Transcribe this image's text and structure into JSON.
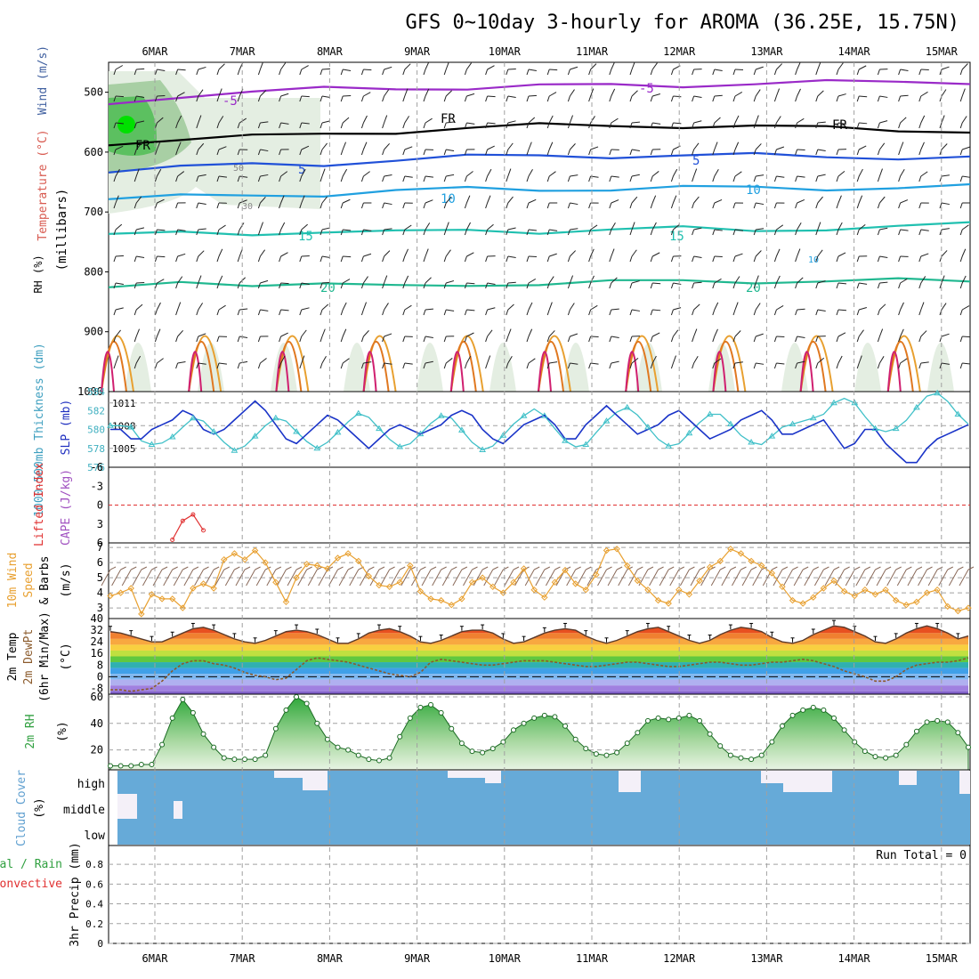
{
  "title": "GFS 0~10day 3-hourly for AROMA (36.25E, 15.75N)",
  "dates": [
    "6MAR",
    "7MAR",
    "8MAR",
    "9MAR",
    "10MAR",
    "11MAR",
    "12MAR",
    "13MAR",
    "14MAR",
    "15MAR"
  ],
  "colors": {
    "frame": "#000000",
    "grid": "#a0a0a0",
    "rh_green": "#3cb44a",
    "slp": "#40c0c8",
    "thickness": "#1a34c8",
    "li": "#e03030",
    "wind": "#e8a030",
    "cloud": "#66aad8",
    "dewpt": "#8b5a2b",
    "temp_curve": "#5a3a2a"
  },
  "chart_data": [
    {
      "type": "line",
      "panel": "upper-air",
      "ylabels": [
        "Wind (m/s)",
        "Temperature (°C)",
        "RH (%)",
        "(millibars)"
      ],
      "y_ticks": [
        "500",
        "600",
        "700",
        "800",
        "900"
      ],
      "y_bottom_label": "1000",
      "ylim": [
        1000,
        450
      ],
      "isotherms": [
        {
          "name": "-5",
          "color": "#9a2ac8",
          "p": [
            520,
            505,
            500,
            495,
            493,
            492,
            490,
            489,
            488,
            485,
            484,
            483,
            482
          ]
        },
        {
          "name": "FR",
          "color": "#000000",
          "p": [
            585,
            578,
            575,
            570,
            565,
            560,
            556,
            555,
            556,
            558,
            560,
            562,
            565
          ]
        },
        {
          "name": "5",
          "color": "#2050d8",
          "p": [
            630,
            625,
            622,
            620,
            612,
            608,
            607,
            606,
            605,
            606,
            608,
            608,
            609
          ]
        },
        {
          "name": "10",
          "color": "#20a0e0",
          "p": [
            678,
            675,
            672,
            670,
            665,
            662,
            662,
            661,
            660,
            660,
            660,
            659,
            658
          ]
        },
        {
          "name": "15",
          "color": "#20c0b0",
          "p": [
            740,
            735,
            735,
            733,
            735,
            730,
            732,
            730,
            728,
            730,
            727,
            726,
            720
          ]
        },
        {
          "name": "20",
          "color": "#20b890",
          "p": [
            830,
            815,
            820,
            822,
            825,
            820,
            820,
            818,
            815,
            815,
            816,
            815,
            815
          ]
        }
      ],
      "contour_labels": [
        "-5",
        "-5",
        "FR",
        "FR",
        "FR",
        "5",
        "5",
        "10",
        "10",
        "15",
        "15",
        "20",
        "20",
        "50",
        "30",
        "10"
      ]
    },
    {
      "type": "line",
      "panel": "pressure",
      "ylabels": [
        "1000-500mb Thickness (dm)",
        "SLP (mb)"
      ],
      "left_ticks": [
        "584",
        "582",
        "580",
        "578",
        "576"
      ],
      "right_ticks": [
        "1011",
        "1008",
        "1005"
      ],
      "series": [
        {
          "name": "SLP (mb)",
          "axis": "right",
          "values": [
            1008,
            1008,
            1007.8,
            1006,
            1005.5,
            1005.7,
            1006.5,
            1007.8,
            1009,
            1008.6,
            1007.2,
            1005.8,
            1004.7,
            1005.3,
            1006.6,
            1008,
            1009,
            1008.6,
            1007.2,
            1005.9,
            1005,
            1005.8,
            1007.1,
            1008.5,
            1009.6,
            1009.1,
            1007.6,
            1006.2,
            1005.2,
            1005.6,
            1006.9,
            1008.3,
            1009.3,
            1009,
            1007.4,
            1005.8,
            1004.8,
            1005.3,
            1006.7,
            1008.2,
            1009.3,
            1010.2,
            1009.3,
            1007.6,
            1006,
            1005.2,
            1005.5,
            1007.1,
            1008.6,
            1009.8,
            1010.4,
            1009.4,
            1007.8,
            1006.2,
            1005.3,
            1005.6,
            1007,
            1008.4,
            1009.5,
            1009.5,
            1008.2,
            1006.7,
            1005.8,
            1005.5,
            1006.6,
            1007.8,
            1008.2,
            1008.6,
            1009,
            1009.5,
            1011,
            1011.6,
            1011,
            1009.2,
            1007.6,
            1007.2,
            1007.6,
            1008.7,
            1010.4,
            1011.9,
            1012.3,
            1011.2,
            1009.5,
            1008.2
          ]
        },
        {
          "name": "1000-500mb Thickness (dm)",
          "axis": "left",
          "values": [
            580,
            580,
            579,
            579,
            580,
            580.5,
            581,
            582,
            581.5,
            580,
            579.5,
            580,
            581,
            582,
            583,
            582,
            580.5,
            579,
            578.5,
            579.5,
            580.5,
            581.5,
            581,
            580,
            579,
            578,
            579,
            580,
            580.5,
            580,
            579.5,
            580,
            580.5,
            581.5,
            582,
            581.5,
            580,
            579,
            578.5,
            579.5,
            580.5,
            581,
            581.5,
            580.5,
            579,
            579,
            580.5,
            581.5,
            582.5,
            581.5,
            580.5,
            579.5,
            580,
            580.5,
            581.5,
            582,
            581,
            580,
            579,
            579.5,
            580,
            581,
            581.5,
            582,
            581,
            579.5,
            579.5,
            580,
            580.5,
            581,
            579.5,
            578,
            578.5,
            580,
            580,
            578.5,
            577.5,
            576.5,
            576.5,
            578,
            579,
            579.5,
            580,
            580.5
          ]
        }
      ]
    },
    {
      "type": "line",
      "panel": "instability",
      "ylabels": [
        "Lifted Index",
        "CAPE (J/kg)"
      ],
      "y_ticks": [
        "-6",
        "-3",
        "0",
        "3",
        "6"
      ],
      "ylim": [
        -6,
        6
      ],
      "series": [
        {
          "name": "Lifted Index",
          "values": [
            null,
            null,
            null,
            null,
            null,
            null,
            5.5,
            2.5,
            1.5,
            4,
            null,
            null,
            null,
            null,
            null,
            null,
            null,
            null,
            null,
            null,
            null,
            null,
            null,
            null,
            null,
            null,
            null,
            null,
            null,
            null,
            null,
            null,
            null,
            null,
            null,
            null,
            null,
            null,
            null,
            null,
            null,
            null,
            null,
            null,
            null,
            null,
            null,
            null,
            null,
            null,
            null,
            null,
            null,
            null,
            null,
            null,
            null,
            null,
            null,
            null,
            null,
            null,
            null,
            null,
            null,
            null,
            null,
            null,
            null,
            null,
            null,
            null,
            null,
            null,
            null,
            null,
            null,
            null,
            null,
            null,
            null,
            null,
            null,
            null
          ]
        }
      ]
    },
    {
      "type": "line",
      "panel": "wind",
      "ylabels": [
        "10m Wind",
        "Speed",
        "& Barbs",
        "(m/s)"
      ],
      "y_ticks": [
        "7",
        "6",
        "5",
        "4",
        "3"
      ],
      "ylim": [
        2.3,
        7.3
      ],
      "series": [
        {
          "name": "10m Wind Speed",
          "values": [
            3.8,
            4,
            4.3,
            2.6,
            3.9,
            3.6,
            3.6,
            3,
            4.3,
            4.6,
            4.3,
            6.2,
            6.6,
            6.2,
            6.8,
            6,
            4.7,
            3.4,
            5,
            5.9,
            5.8,
            5.6,
            6.3,
            6.6,
            6.1,
            5.1,
            4.5,
            4.4,
            4.7,
            5.8,
            4.1,
            3.6,
            3.5,
            3.2,
            3.6,
            4.7,
            5,
            4.4,
            4,
            4.7,
            5.6,
            4.2,
            3.7,
            4.7,
            5.5,
            4.6,
            4.2,
            5.2,
            6.8,
            6.9,
            5.8,
            4.8,
            4.2,
            3.5,
            3.3,
            4.2,
            3.9,
            4.8,
            5.7,
            6.1,
            6.9,
            6.6,
            6.1,
            5.8,
            5.3,
            4.4,
            3.5,
            3.3,
            3.7,
            4.3,
            4.8,
            4.1,
            3.8,
            4.2,
            3.9,
            4.2,
            3.5,
            3.2,
            3.4,
            4,
            4.2,
            3.1,
            2.8,
            3
          ]
        }
      ]
    },
    {
      "type": "area",
      "panel": "temperature",
      "ylabels": [
        "2m Temp",
        "2m DewPt",
        "(6hr Min/Max)",
        "(°C)"
      ],
      "y_ticks": [
        "40",
        "32",
        "24",
        "16",
        "8",
        "0",
        "-8"
      ],
      "ylim": [
        -12,
        40
      ],
      "series": [
        {
          "name": "2m Temp",
          "values": [
            31,
            30,
            28,
            26,
            24,
            24,
            27,
            30,
            33,
            34,
            32,
            29,
            26,
            24,
            23,
            25,
            28,
            31,
            32,
            31,
            29,
            26,
            23,
            23,
            26,
            30,
            32,
            33,
            31,
            28,
            24,
            23,
            25,
            28,
            31,
            32,
            32,
            30,
            26,
            23,
            24,
            27,
            30,
            32,
            33,
            32,
            28,
            25,
            23,
            25,
            28,
            31,
            33,
            34,
            31,
            28,
            25,
            23,
            25,
            29,
            32,
            34,
            33,
            31,
            27,
            24,
            23,
            25,
            29,
            32,
            35,
            34,
            31,
            28,
            24,
            23,
            26,
            30,
            33,
            35,
            33,
            30,
            26,
            28
          ]
        },
        {
          "name": "2m DewPt",
          "values": [
            -9,
            -9,
            -10,
            -9,
            -8,
            -3,
            4,
            9,
            11,
            11,
            9,
            8,
            6,
            3,
            1,
            0,
            -2,
            -1,
            5,
            11,
            13,
            12,
            11,
            10,
            8,
            6,
            4,
            2,
            1,
            0,
            3,
            10,
            12,
            11,
            10,
            9,
            8,
            8,
            9,
            10,
            11,
            11,
            11,
            10,
            9,
            8,
            7,
            7,
            8,
            9,
            10,
            10,
            9,
            8,
            7,
            7,
            8,
            9,
            10,
            10,
            9,
            8,
            8,
            9,
            10,
            10,
            11,
            12,
            11,
            9,
            7,
            4,
            2,
            0,
            -3,
            -3,
            0,
            5,
            8,
            9,
            10,
            10,
            11,
            13
          ]
        }
      ]
    },
    {
      "type": "area",
      "panel": "humidity",
      "ylabels": [
        "2m RH",
        "(%)"
      ],
      "y_ticks": [
        "60",
        "40",
        "20"
      ],
      "ylim": [
        5,
        62
      ],
      "series": [
        {
          "name": "2m RH",
          "values": [
            8,
            8,
            8,
            9,
            9,
            24,
            44,
            58,
            48,
            32,
            22,
            14,
            13,
            13,
            13,
            16,
            36,
            50,
            60,
            55,
            40,
            28,
            22,
            20,
            16,
            13,
            12,
            14,
            30,
            44,
            52,
            54,
            48,
            36,
            25,
            19,
            18,
            21,
            26,
            35,
            40,
            44,
            46,
            45,
            38,
            28,
            21,
            17,
            16,
            18,
            25,
            33,
            42,
            44,
            43,
            44,
            46,
            42,
            32,
            23,
            16,
            14,
            13,
            16,
            26,
            38,
            46,
            50,
            52,
            50,
            44,
            35,
            26,
            19,
            15,
            14,
            16,
            24,
            34,
            41,
            42,
            41,
            33,
            22
          ]
        }
      ]
    },
    {
      "type": "bar",
      "panel": "cloud",
      "ylabels": [
        "Cloud Cover",
        "(%)"
      ],
      "levels": [
        "high",
        "middle",
        "low"
      ]
    },
    {
      "type": "bar",
      "panel": "precip",
      "ylabels": [
        "Total / Rain",
        "Convective",
        "3hr Precip (mm)"
      ],
      "y_ticks": [
        "0.8",
        "0.6",
        "0.4",
        "0.2",
        "0"
      ],
      "ylim": [
        0,
        0.9
      ],
      "run_total": "Run Total = 0",
      "values": []
    }
  ]
}
